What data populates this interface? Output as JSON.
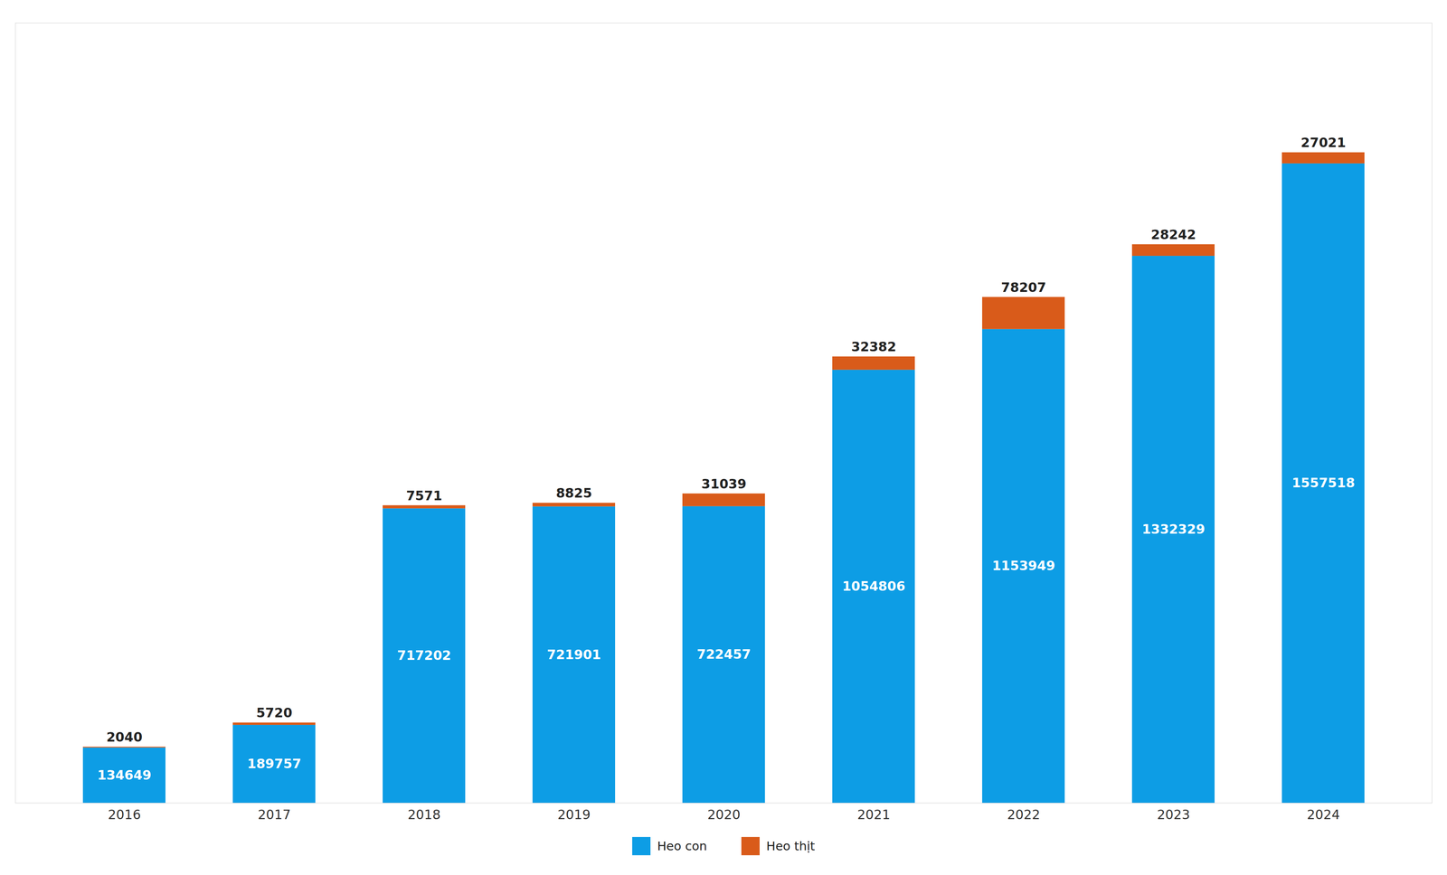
{
  "chart_data": {
    "type": "bar",
    "categories": [
      "2016",
      "2017",
      "2018",
      "2019",
      "2020",
      "2021",
      "2022",
      "2023",
      "2024"
    ],
    "series": [
      {
        "name": "Heo con",
        "color": "#0D9DE5",
        "values": [
          134649,
          189757,
          717202,
          721901,
          722457,
          1054806,
          1153949,
          1332329,
          1557518
        ]
      },
      {
        "name": "Heo thịt",
        "color": "#D95B1A",
        "values": [
          2040,
          5720,
          7571,
          8825,
          31039,
          32382,
          78207,
          28242,
          27021
        ]
      }
    ],
    "stacked": true,
    "data_labels": true,
    "ylim": [
      0,
      1900000
    ],
    "grid": false,
    "legend": "bottom",
    "tick_labels": "x"
  }
}
